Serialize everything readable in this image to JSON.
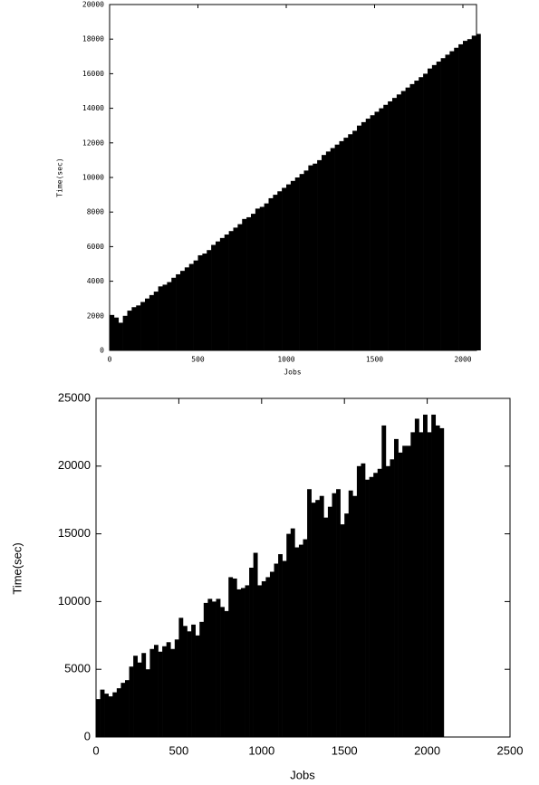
{
  "chart_data": [
    {
      "type": "bar",
      "xlabel": "Jobs",
      "ylabel": "Time(sec)",
      "color": "#000000",
      "x": [
        0,
        25,
        50,
        75,
        100,
        125,
        150,
        175,
        200,
        225,
        250,
        275,
        300,
        325,
        350,
        375,
        400,
        425,
        450,
        475,
        500,
        525,
        550,
        575,
        600,
        625,
        650,
        675,
        700,
        725,
        750,
        775,
        800,
        825,
        850,
        875,
        900,
        925,
        950,
        975,
        1000,
        1025,
        1050,
        1075,
        1100,
        1125,
        1150,
        1175,
        1200,
        1225,
        1250,
        1275,
        1300,
        1325,
        1350,
        1375,
        1400,
        1425,
        1450,
        1475,
        1500,
        1525,
        1550,
        1575,
        1600,
        1625,
        1650,
        1675,
        1700,
        1725,
        1750,
        1775,
        1800,
        1825,
        1850,
        1875,
        1900,
        1925,
        1950,
        1975,
        2000,
        2025,
        2050,
        2075
      ],
      "values": [
        2050,
        1900,
        1600,
        2000,
        2300,
        2500,
        2600,
        2800,
        3000,
        3200,
        3400,
        3700,
        3800,
        3950,
        4200,
        4400,
        4600,
        4800,
        5000,
        5200,
        5500,
        5600,
        5800,
        6100,
        6300,
        6500,
        6700,
        6900,
        7100,
        7300,
        7600,
        7700,
        7900,
        8200,
        8300,
        8500,
        8800,
        9000,
        9200,
        9400,
        9600,
        9800,
        10000,
        10200,
        10400,
        10700,
        10800,
        11000,
        11300,
        11500,
        11700,
        11900,
        12100,
        12300,
        12500,
        12700,
        13000,
        13200,
        13400,
        13600,
        13800,
        14000,
        14200,
        14400,
        14600,
        14800,
        15000,
        15200,
        15400,
        15600,
        15800,
        16000,
        16300,
        16500,
        16700,
        16900,
        17100,
        17300,
        17500,
        17700,
        17900,
        18000,
        18200,
        18300
      ],
      "xlim": [
        0,
        2077
      ],
      "xticks": [
        0,
        500,
        1000,
        1500,
        2000
      ],
      "ylim": [
        0,
        20000
      ],
      "yticks": [
        0,
        2000,
        4000,
        6000,
        8000,
        10000,
        12000,
        14000,
        16000,
        18000,
        20000
      ]
    },
    {
      "type": "bar",
      "xlabel": "Jobs",
      "ylabel": "Time(sec)",
      "color": "#000000",
      "x": [
        0,
        25,
        50,
        75,
        100,
        125,
        150,
        175,
        200,
        225,
        250,
        275,
        300,
        325,
        350,
        375,
        400,
        425,
        450,
        475,
        500,
        525,
        550,
        575,
        600,
        625,
        650,
        675,
        700,
        725,
        750,
        775,
        800,
        825,
        850,
        875,
        900,
        925,
        950,
        975,
        1000,
        1025,
        1050,
        1075,
        1100,
        1125,
        1150,
        1175,
        1200,
        1225,
        1250,
        1275,
        1300,
        1325,
        1350,
        1375,
        1400,
        1425,
        1450,
        1475,
        1500,
        1525,
        1550,
        1575,
        1600,
        1625,
        1650,
        1675,
        1700,
        1725,
        1750,
        1775,
        1800,
        1825,
        1850,
        1875,
        1900,
        1925,
        1950,
        1975,
        2000,
        2025,
        2050,
        2075
      ],
      "values": [
        2800,
        3500,
        3200,
        3000,
        3300,
        3600,
        4000,
        4200,
        5200,
        6000,
        5500,
        6200,
        5000,
        6500,
        6800,
        6300,
        6700,
        7000,
        6500,
        7200,
        8800,
        8200,
        7800,
        8300,
        7500,
        8500,
        9900,
        10200,
        10000,
        10200,
        9600,
        9300,
        11800,
        11700,
        10900,
        11000,
        11200,
        12500,
        13600,
        11200,
        11500,
        11800,
        12200,
        12800,
        13500,
        13000,
        15000,
        15400,
        14000,
        14200,
        14600,
        18300,
        17300,
        17500,
        17800,
        16200,
        17000,
        18000,
        18300,
        15700,
        16500,
        18200,
        17800,
        20000,
        20200,
        19000,
        19200,
        19500,
        19800,
        23000,
        20000,
        20500,
        22000,
        21000,
        21500,
        21500,
        22500,
        23500,
        22500,
        23800,
        22500,
        23800,
        23000,
        22800
      ],
      "xlim": [
        0,
        2500
      ],
      "xticks": [
        0,
        500,
        1000,
        1500,
        2000,
        2500
      ],
      "ylim": [
        0,
        25000
      ],
      "yticks": [
        0,
        5000,
        10000,
        15000,
        20000,
        25000
      ]
    }
  ]
}
